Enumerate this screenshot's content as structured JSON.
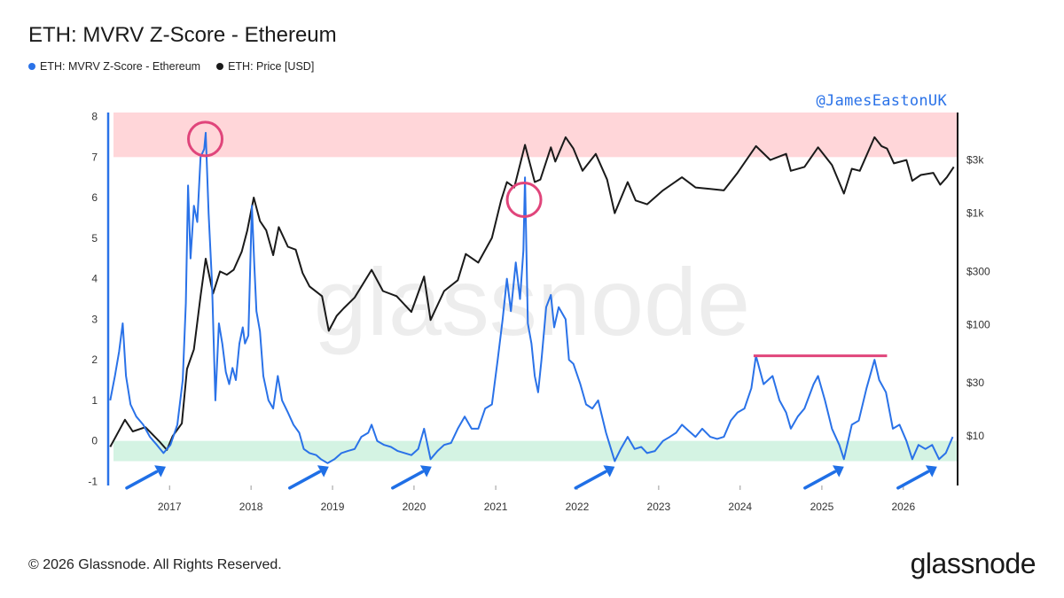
{
  "header": {
    "title": "ETH: MVRV Z-Score - Ethereum"
  },
  "legend": [
    {
      "label": "ETH: MVRV Z-Score - Ethereum",
      "color": "#2a72e8"
    },
    {
      "label": "ETH: Price [USD]",
      "color": "#1a1a1a"
    }
  ],
  "annotation_handle": "@JamesEastonUK",
  "watermark": "glassnode",
  "footer": {
    "copyright": "© 2026 Glassnode. All Rights Reserved.",
    "brand": "glassnode"
  },
  "colors": {
    "zscore": "#2a72e8",
    "price": "#1a1a1a",
    "top_zone": "#ffd6d9",
    "bottom_zone": "#d4f3e3",
    "highlight": "#e0457b",
    "arrow": "#1f6fe6"
  },
  "chart_data": {
    "type": "line",
    "x_ticks": [
      "2017",
      "2018",
      "2019",
      "2020",
      "2021",
      "2022",
      "2023",
      "2024",
      "2025",
      "2026"
    ],
    "xlim": [
      "2016-04",
      "2026-09"
    ],
    "y_left": {
      "ticks": [
        "8",
        "7",
        "6",
        "5",
        "4",
        "3",
        "2",
        "1",
        "0",
        "-1"
      ],
      "ylim": [
        -1.1,
        8.1
      ]
    },
    "y_right": {
      "scale": "log",
      "ticks": [
        "$3k",
        "$1k",
        "$300",
        "$100",
        "$30",
        "$10"
      ],
      "tick_values": [
        3000,
        1000,
        300,
        100,
        30,
        10
      ],
      "ylim": [
        3.6,
        8000
      ]
    },
    "zones": [
      {
        "name": "top",
        "from": 7,
        "to": 8.1
      },
      {
        "name": "bottom",
        "from": -0.5,
        "to": 0
      }
    ],
    "series": [
      {
        "name": "ETH: MVRV Z-Score - Ethereum",
        "axis": "left",
        "points": [
          [
            "2016-04-10",
            1.0
          ],
          [
            "2016-05-01",
            1.6
          ],
          [
            "2016-05-20",
            2.2
          ],
          [
            "2016-06-05",
            2.9
          ],
          [
            "2016-06-20",
            1.6
          ],
          [
            "2016-07-10",
            0.9
          ],
          [
            "2016-08-05",
            0.6
          ],
          [
            "2016-09-05",
            0.4
          ],
          [
            "2016-10-05",
            0.1
          ],
          [
            "2016-11-05",
            -0.1
          ],
          [
            "2016-12-05",
            -0.3
          ],
          [
            "2017-01-05",
            -0.1
          ],
          [
            "2017-02-05",
            0.4
          ],
          [
            "2017-03-01",
            1.5
          ],
          [
            "2017-03-15",
            3.4
          ],
          [
            "2017-03-25",
            6.3
          ],
          [
            "2017-04-05",
            4.5
          ],
          [
            "2017-04-20",
            5.8
          ],
          [
            "2017-05-05",
            5.4
          ],
          [
            "2017-05-20",
            7.0
          ],
          [
            "2017-06-05",
            7.2
          ],
          [
            "2017-06-12",
            7.6
          ],
          [
            "2017-06-25",
            5.6
          ],
          [
            "2017-07-10",
            3.9
          ],
          [
            "2017-07-25",
            1.0
          ],
          [
            "2017-08-10",
            2.9
          ],
          [
            "2017-08-25",
            2.4
          ],
          [
            "2017-09-10",
            1.7
          ],
          [
            "2017-09-25",
            1.4
          ],
          [
            "2017-10-10",
            1.8
          ],
          [
            "2017-10-25",
            1.5
          ],
          [
            "2017-11-10",
            2.4
          ],
          [
            "2017-11-25",
            2.8
          ],
          [
            "2017-12-05",
            2.4
          ],
          [
            "2017-12-20",
            2.6
          ],
          [
            "2018-01-05",
            5.8
          ],
          [
            "2018-01-15",
            4.4
          ],
          [
            "2018-01-25",
            3.2
          ],
          [
            "2018-02-10",
            2.7
          ],
          [
            "2018-02-25",
            1.6
          ],
          [
            "2018-03-20",
            1.0
          ],
          [
            "2018-04-10",
            0.8
          ],
          [
            "2018-05-01",
            1.6
          ],
          [
            "2018-05-20",
            1.0
          ],
          [
            "2018-06-15",
            0.7
          ],
          [
            "2018-07-10",
            0.4
          ],
          [
            "2018-08-05",
            0.2
          ],
          [
            "2018-08-25",
            -0.2
          ],
          [
            "2018-09-20",
            -0.3
          ],
          [
            "2018-10-20",
            -0.35
          ],
          [
            "2018-11-10",
            -0.45
          ],
          [
            "2018-12-10",
            -0.55
          ],
          [
            "2019-01-10",
            -0.45
          ],
          [
            "2019-02-10",
            -0.3
          ],
          [
            "2019-03-10",
            -0.25
          ],
          [
            "2019-04-10",
            -0.2
          ],
          [
            "2019-05-10",
            0.1
          ],
          [
            "2019-06-10",
            0.2
          ],
          [
            "2019-06-25",
            0.4
          ],
          [
            "2019-07-20",
            0.0
          ],
          [
            "2019-08-20",
            -0.1
          ],
          [
            "2019-09-20",
            -0.15
          ],
          [
            "2019-10-20",
            -0.25
          ],
          [
            "2019-11-20",
            -0.3
          ],
          [
            "2019-12-20",
            -0.35
          ],
          [
            "2020-01-20",
            -0.2
          ],
          [
            "2020-02-15",
            0.3
          ],
          [
            "2020-03-15",
            -0.45
          ],
          [
            "2020-04-15",
            -0.25
          ],
          [
            "2020-05-15",
            -0.1
          ],
          [
            "2020-06-15",
            -0.05
          ],
          [
            "2020-07-15",
            0.3
          ],
          [
            "2020-08-15",
            0.6
          ],
          [
            "2020-09-15",
            0.3
          ],
          [
            "2020-10-15",
            0.3
          ],
          [
            "2020-11-15",
            0.8
          ],
          [
            "2020-12-15",
            0.9
          ],
          [
            "2021-01-10",
            2.0
          ],
          [
            "2021-02-01",
            3.0
          ],
          [
            "2021-02-20",
            4.0
          ],
          [
            "2021-03-10",
            3.2
          ],
          [
            "2021-04-01",
            4.4
          ],
          [
            "2021-04-20",
            3.5
          ],
          [
            "2021-05-05",
            4.7
          ],
          [
            "2021-05-12",
            6.5
          ],
          [
            "2021-05-25",
            2.9
          ],
          [
            "2021-06-10",
            2.4
          ],
          [
            "2021-06-25",
            1.6
          ],
          [
            "2021-07-10",
            1.2
          ],
          [
            "2021-07-25",
            2.0
          ],
          [
            "2021-08-15",
            3.3
          ],
          [
            "2021-09-05",
            3.6
          ],
          [
            "2021-09-20",
            2.8
          ],
          [
            "2021-10-10",
            3.3
          ],
          [
            "2021-11-10",
            3.0
          ],
          [
            "2021-11-25",
            2.0
          ],
          [
            "2021-12-15",
            1.9
          ],
          [
            "2022-01-15",
            1.4
          ],
          [
            "2022-02-10",
            0.9
          ],
          [
            "2022-03-10",
            0.8
          ],
          [
            "2022-04-05",
            1.0
          ],
          [
            "2022-05-10",
            0.2
          ],
          [
            "2022-06-18",
            -0.5
          ],
          [
            "2022-07-15",
            -0.2
          ],
          [
            "2022-08-15",
            0.1
          ],
          [
            "2022-09-15",
            -0.2
          ],
          [
            "2022-10-15",
            -0.15
          ],
          [
            "2022-11-10",
            -0.3
          ],
          [
            "2022-12-15",
            -0.25
          ],
          [
            "2023-01-20",
            0.0
          ],
          [
            "2023-02-20",
            0.1
          ],
          [
            "2023-03-20",
            0.2
          ],
          [
            "2023-04-15",
            0.4
          ],
          [
            "2023-05-15",
            0.25
          ],
          [
            "2023-06-15",
            0.1
          ],
          [
            "2023-07-15",
            0.3
          ],
          [
            "2023-08-20",
            0.1
          ],
          [
            "2023-09-20",
            0.05
          ],
          [
            "2023-10-20",
            0.1
          ],
          [
            "2023-11-20",
            0.5
          ],
          [
            "2023-12-20",
            0.7
          ],
          [
            "2024-01-20",
            0.8
          ],
          [
            "2024-02-20",
            1.3
          ],
          [
            "2024-03-12",
            2.1
          ],
          [
            "2024-04-15",
            1.4
          ],
          [
            "2024-05-25",
            1.6
          ],
          [
            "2024-06-25",
            1.0
          ],
          [
            "2024-07-25",
            0.7
          ],
          [
            "2024-08-15",
            0.3
          ],
          [
            "2024-09-15",
            0.6
          ],
          [
            "2024-10-15",
            0.8
          ],
          [
            "2024-11-25",
            1.4
          ],
          [
            "2024-12-15",
            1.6
          ],
          [
            "2025-01-15",
            1.0
          ],
          [
            "2025-02-15",
            0.3
          ],
          [
            "2025-03-20",
            -0.1
          ],
          [
            "2025-04-10",
            -0.45
          ],
          [
            "2025-05-15",
            0.4
          ],
          [
            "2025-06-15",
            0.5
          ],
          [
            "2025-07-20",
            1.3
          ],
          [
            "2025-08-25",
            2.0
          ],
          [
            "2025-09-15",
            1.5
          ],
          [
            "2025-10-15",
            1.2
          ],
          [
            "2025-11-15",
            0.3
          ],
          [
            "2025-12-15",
            0.4
          ],
          [
            "2026-01-15",
            0.0
          ],
          [
            "2026-02-10",
            -0.45
          ],
          [
            "2026-03-10",
            -0.1
          ],
          [
            "2026-04-10",
            -0.2
          ],
          [
            "2026-05-10",
            -0.1
          ],
          [
            "2026-06-10",
            -0.45
          ],
          [
            "2026-07-10",
            -0.3
          ],
          [
            "2026-08-10",
            0.1
          ]
        ]
      },
      {
        "name": "ETH: Price [USD]",
        "axis": "right",
        "points": [
          [
            "2016-04-10",
            8
          ],
          [
            "2016-06-15",
            14
          ],
          [
            "2016-07-20",
            11
          ],
          [
            "2016-09-15",
            12
          ],
          [
            "2016-11-15",
            9
          ],
          [
            "2016-12-20",
            7.5
          ],
          [
            "2017-01-15",
            10
          ],
          [
            "2017-02-25",
            13
          ],
          [
            "2017-03-20",
            40
          ],
          [
            "2017-04-20",
            60
          ],
          [
            "2017-05-20",
            180
          ],
          [
            "2017-06-12",
            390
          ],
          [
            "2017-07-15",
            190
          ],
          [
            "2017-08-15",
            300
          ],
          [
            "2017-09-15",
            280
          ],
          [
            "2017-10-15",
            310
          ],
          [
            "2017-11-20",
            450
          ],
          [
            "2017-12-15",
            700
          ],
          [
            "2018-01-13",
            1380
          ],
          [
            "2018-02-10",
            850
          ],
          [
            "2018-03-10",
            700
          ],
          [
            "2018-04-10",
            420
          ],
          [
            "2018-05-05",
            750
          ],
          [
            "2018-06-15",
            500
          ],
          [
            "2018-07-20",
            470
          ],
          [
            "2018-08-20",
            290
          ],
          [
            "2018-09-20",
            220
          ],
          [
            "2018-11-15",
            180
          ],
          [
            "2018-12-15",
            88
          ],
          [
            "2019-01-20",
            120
          ],
          [
            "2019-02-20",
            140
          ],
          [
            "2019-04-10",
            175
          ],
          [
            "2019-06-25",
            310
          ],
          [
            "2019-08-15",
            200
          ],
          [
            "2019-10-15",
            180
          ],
          [
            "2019-12-20",
            130
          ],
          [
            "2020-02-15",
            270
          ],
          [
            "2020-03-15",
            110
          ],
          [
            "2020-05-15",
            200
          ],
          [
            "2020-07-15",
            250
          ],
          [
            "2020-08-20",
            430
          ],
          [
            "2020-10-15",
            360
          ],
          [
            "2020-12-15",
            600
          ],
          [
            "2021-01-25",
            1300
          ],
          [
            "2021-02-20",
            1900
          ],
          [
            "2021-03-25",
            1700
          ],
          [
            "2021-05-12",
            4100
          ],
          [
            "2021-06-25",
            1900
          ],
          [
            "2021-07-20",
            2000
          ],
          [
            "2021-09-05",
            3900
          ],
          [
            "2021-09-25",
            2900
          ],
          [
            "2021-11-10",
            4800
          ],
          [
            "2021-12-15",
            3800
          ],
          [
            "2022-01-25",
            2400
          ],
          [
            "2022-03-25",
            3400
          ],
          [
            "2022-05-15",
            2000
          ],
          [
            "2022-06-18",
            1000
          ],
          [
            "2022-08-15",
            1900
          ],
          [
            "2022-09-20",
            1300
          ],
          [
            "2022-11-10",
            1200
          ],
          [
            "2023-01-20",
            1600
          ],
          [
            "2023-04-15",
            2100
          ],
          [
            "2023-06-15",
            1700
          ],
          [
            "2023-08-20",
            1650
          ],
          [
            "2023-10-20",
            1600
          ],
          [
            "2023-12-20",
            2300
          ],
          [
            "2024-03-12",
            4000
          ],
          [
            "2024-05-15",
            3000
          ],
          [
            "2024-07-25",
            3400
          ],
          [
            "2024-08-15",
            2400
          ],
          [
            "2024-10-15",
            2600
          ],
          [
            "2024-12-15",
            3900
          ],
          [
            "2025-02-15",
            2700
          ],
          [
            "2025-04-10",
            1500
          ],
          [
            "2025-05-15",
            2500
          ],
          [
            "2025-06-20",
            2400
          ],
          [
            "2025-08-25",
            4800
          ],
          [
            "2025-09-25",
            4000
          ],
          [
            "2025-10-20",
            3800
          ],
          [
            "2025-11-20",
            2800
          ],
          [
            "2026-01-15",
            3000
          ],
          [
            "2026-02-10",
            1950
          ],
          [
            "2026-03-20",
            2200
          ],
          [
            "2026-05-15",
            2300
          ],
          [
            "2026-06-15",
            1800
          ],
          [
            "2026-07-15",
            2100
          ],
          [
            "2026-08-15",
            2600
          ]
        ]
      }
    ],
    "annotations": {
      "circles": [
        {
          "date": "2017-06-10",
          "value": 7.6
        },
        {
          "date": "2021-05-08",
          "value": 6.1
        }
      ],
      "resistance_line": {
        "from": "2024-03-01",
        "to": "2025-10-20",
        "value": 2.1
      },
      "arrows_to": [
        "2016-12-15",
        "2018-12-15",
        "2020-03-20",
        "2022-06-18",
        "2025-04-10",
        "2026-06-01"
      ]
    }
  }
}
